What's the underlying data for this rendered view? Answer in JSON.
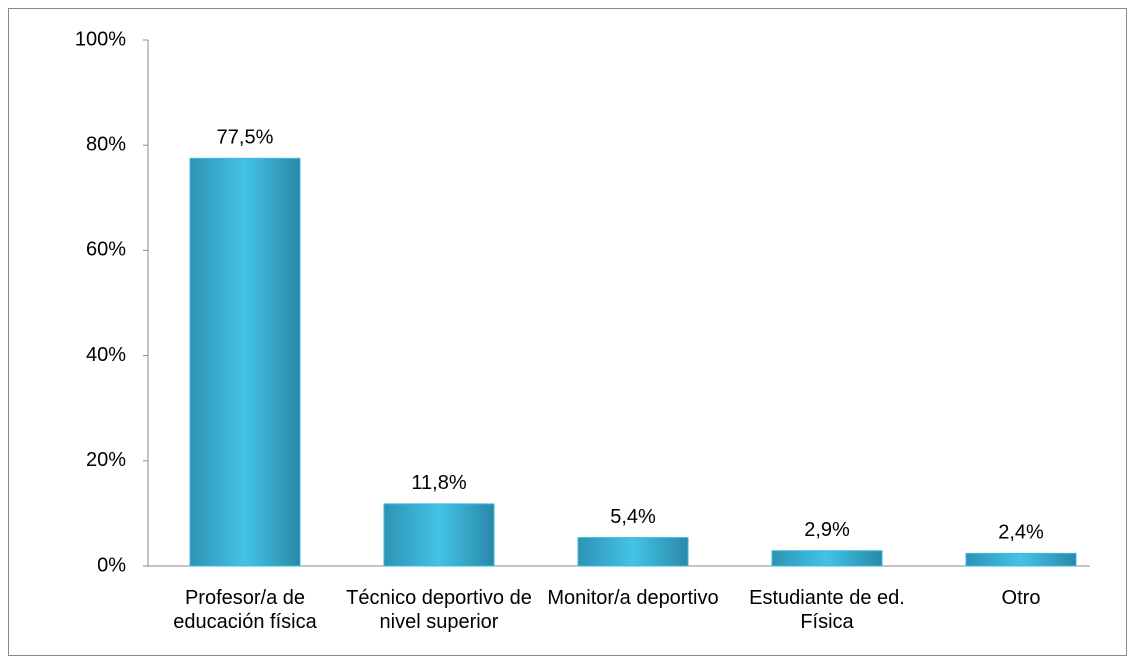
{
  "chart_data": {
    "type": "bar",
    "categories": [
      "Profesor/a de educación física",
      "Técnico deportivo de nivel superior",
      "Monitor/a deportivo",
      "Estudiante de ed. Física",
      "Otro"
    ],
    "values": [
      77.5,
      11.8,
      5.4,
      2.9,
      2.4
    ],
    "value_labels": [
      "77,5%",
      "11,8%",
      "5,4%",
      "2,9%",
      "2,4%"
    ],
    "color": "#3bb8dc",
    "ylim": [
      0,
      100
    ],
    "yticks": [
      {
        "value": 0,
        "label": "0%"
      },
      {
        "value": 20,
        "label": "20%"
      },
      {
        "value": 40,
        "label": "40%"
      },
      {
        "value": 60,
        "label": "60%"
      },
      {
        "value": 80,
        "label": "80%"
      },
      {
        "value": 100,
        "label": "100%"
      }
    ],
    "grid": false
  }
}
